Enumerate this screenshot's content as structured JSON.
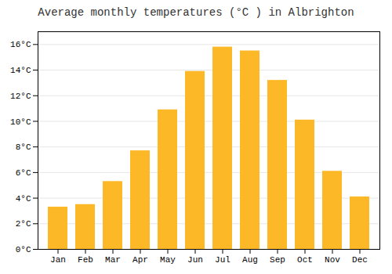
{
  "chart_data": {
    "type": "bar",
    "title": "Average monthly temperatures (°C ) in Albrighton",
    "categories": [
      "Jan",
      "Feb",
      "Mar",
      "Apr",
      "May",
      "Jun",
      "Jul",
      "Aug",
      "Sep",
      "Oct",
      "Nov",
      "Dec"
    ],
    "values": [
      3.3,
      3.5,
      5.3,
      7.7,
      10.9,
      13.9,
      15.8,
      15.5,
      13.2,
      10.1,
      6.1,
      4.1
    ],
    "color": "#FDB827",
    "ylim": [
      0,
      17
    ],
    "yticks": [
      {
        "value": 0,
        "label": "0°C"
      },
      {
        "value": 2,
        "label": "2°C"
      },
      {
        "value": 4,
        "label": "4°C"
      },
      {
        "value": 6,
        "label": "6°C"
      },
      {
        "value": 8,
        "label": "8°C"
      },
      {
        "value": 10,
        "label": "10°C"
      },
      {
        "value": 12,
        "label": "12°C"
      },
      {
        "value": 14,
        "label": "14°C"
      },
      {
        "value": 16,
        "label": "16°C"
      }
    ],
    "grid": true
  }
}
